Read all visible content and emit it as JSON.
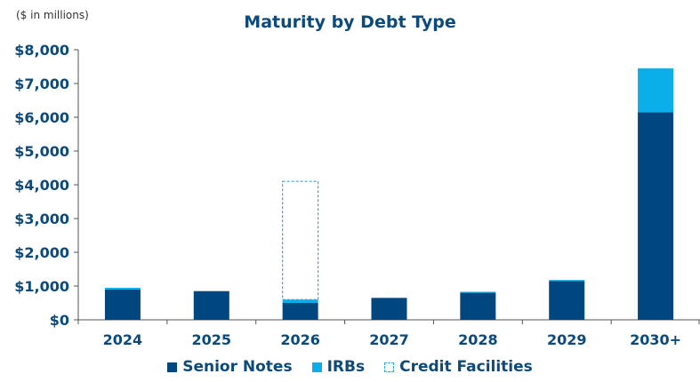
{
  "header": {
    "unit_note": "($ in millions)",
    "title": "Maturity by Debt Type"
  },
  "colors": {
    "senior_notes": "#00467f",
    "irbs": "#0aaee8",
    "credit_facilities_border": "#33a9d6",
    "axis": "#555555",
    "text": "#0b4a7a"
  },
  "chart_data": {
    "type": "bar",
    "stacked": true,
    "title": "Maturity by Debt Type",
    "categories": [
      "2024",
      "2025",
      "2026",
      "2027",
      "2028",
      "2029",
      "2030+"
    ],
    "series": [
      {
        "name": "Senior Notes",
        "values": [
          900,
          850,
          500,
          650,
          800,
          1150,
          6150
        ]
      },
      {
        "name": "IRBs",
        "values": [
          50,
          0,
          100,
          0,
          30,
          30,
          1300
        ]
      },
      {
        "name": "Credit Facilities",
        "values": [
          0,
          0,
          3500,
          0,
          0,
          0,
          0
        ]
      }
    ],
    "yticks": [
      "$0",
      "$1,000",
      "$2,000",
      "$3,000",
      "$4,000",
      "$5,000",
      "$6,000",
      "$7,000",
      "$8,000"
    ],
    "ylim": [
      0,
      8000
    ],
    "legend": "bottom",
    "grid": false
  }
}
